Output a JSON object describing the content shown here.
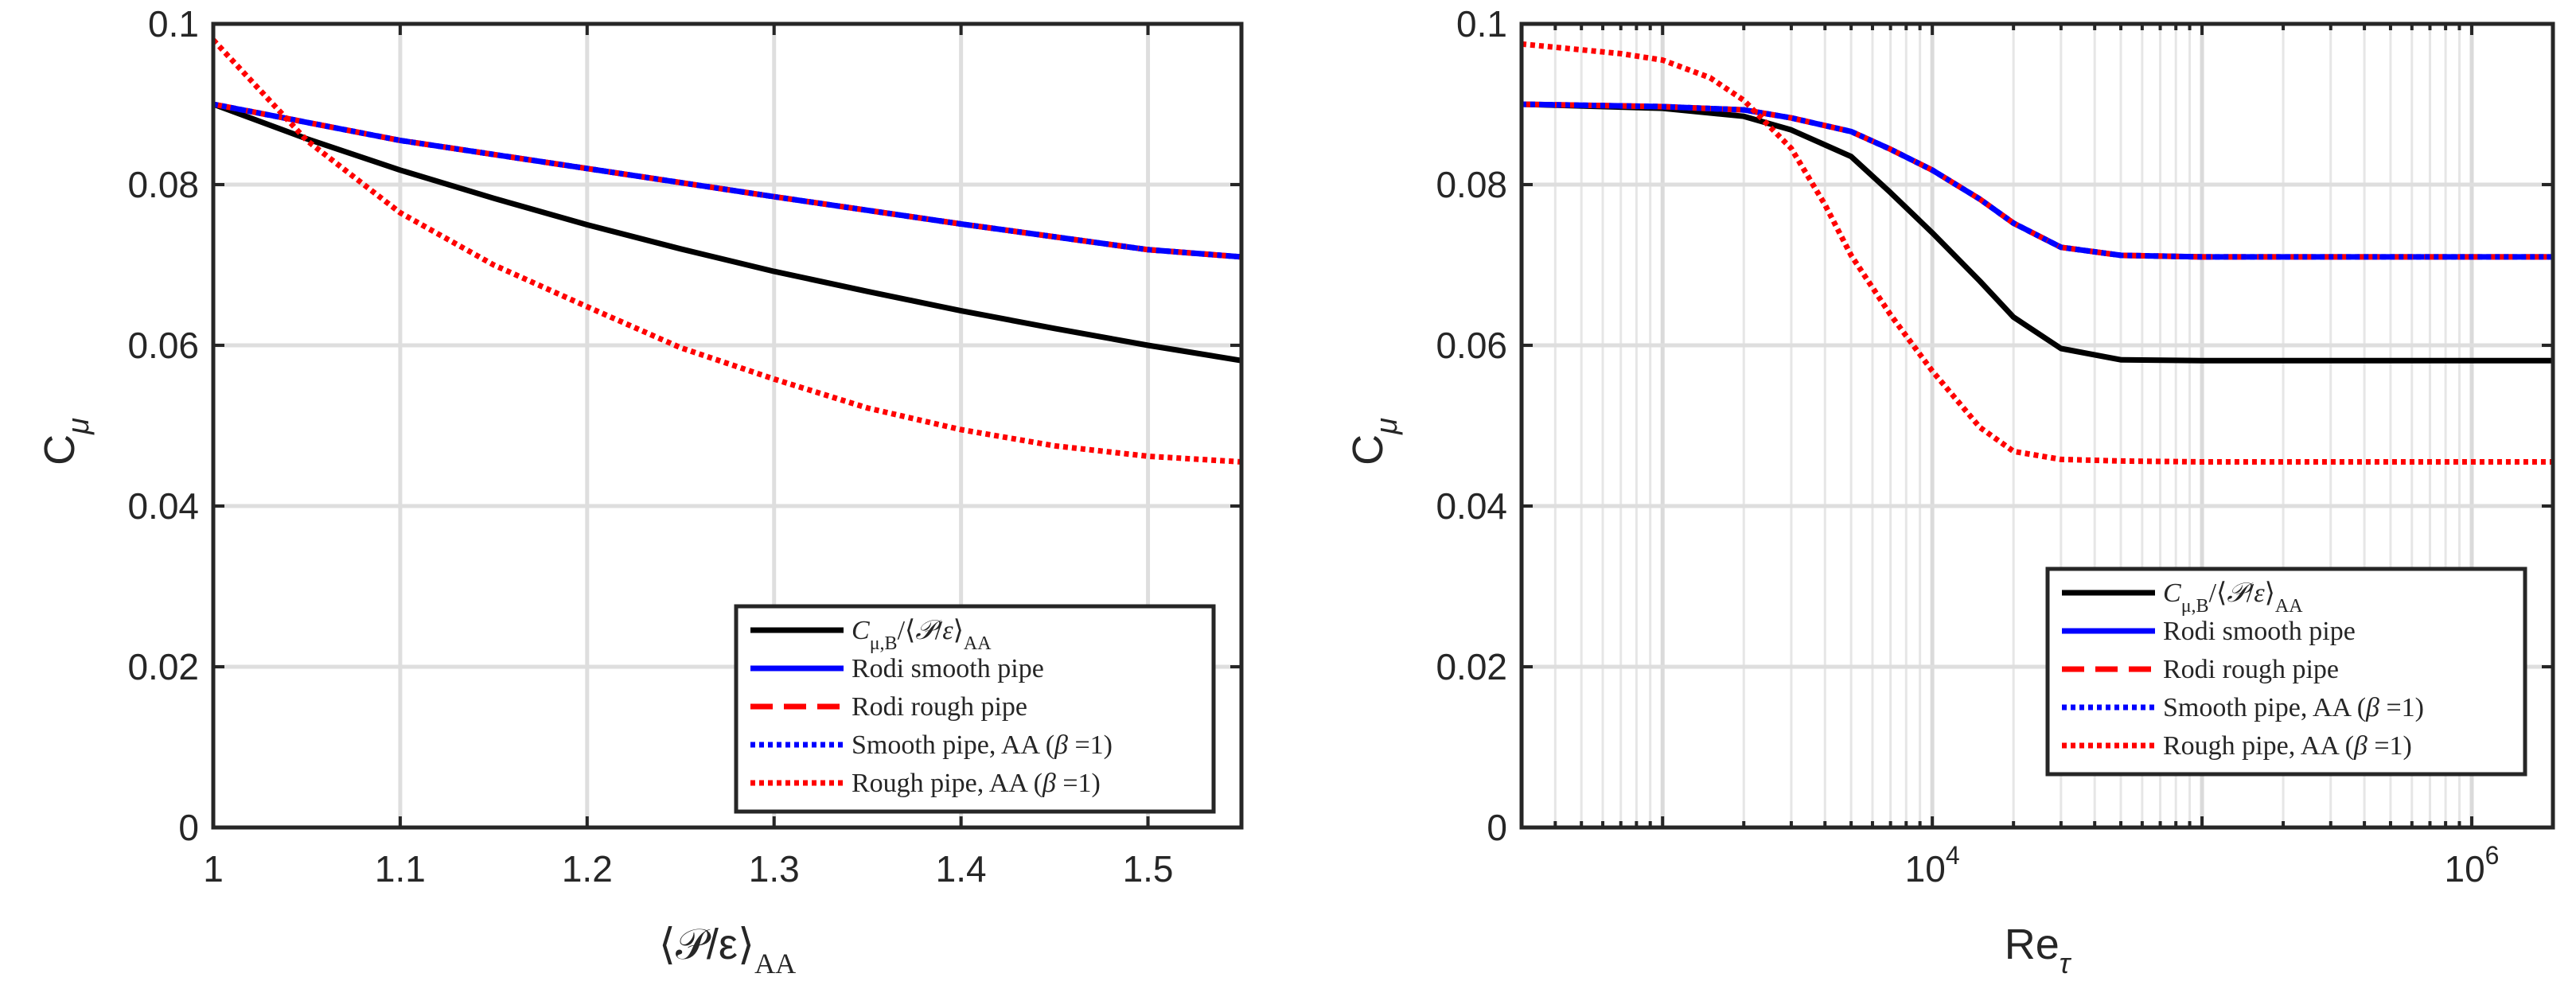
{
  "chart_data": [
    {
      "type": "line",
      "xlabel": "⟨𝒫/ε⟩",
      "xlabel_sub": "AA",
      "ylabel": "C",
      "ylabel_sub": "μ",
      "xlim": [
        1,
        1.55
      ],
      "ylim": [
        0,
        0.1
      ],
      "xticks": [
        1,
        1.1,
        1.2,
        1.3,
        1.4,
        1.5
      ],
      "xtick_labels": [
        "1",
        "1.1",
        "1.2",
        "1.3",
        "1.4",
        "1.5"
      ],
      "yticks": [
        0,
        0.02,
        0.04,
        0.06,
        0.08,
        0.1
      ],
      "ytick_labels": [
        "0",
        "0.02",
        "0.04",
        "0.06",
        "0.08",
        "0.1"
      ],
      "grid": true,
      "legend_position": "bottom-right",
      "series": [
        {
          "name": "C_{μ,B}/⟨𝒫/ε⟩_AA",
          "color": "#000000",
          "dash": "solid",
          "x": [
            1,
            1.05,
            1.1,
            1.15,
            1.2,
            1.25,
            1.3,
            1.35,
            1.4,
            1.45,
            1.5,
            1.55
          ],
          "y": [
            0.09,
            0.0857,
            0.0818,
            0.0783,
            0.075,
            0.072,
            0.0692,
            0.0667,
            0.0643,
            0.0621,
            0.06,
            0.0581
          ]
        },
        {
          "name": "Rodi        smooth pipe",
          "color": "#0000ff",
          "dash": "solid",
          "x": [
            1,
            1.1,
            1.2,
            1.3,
            1.4,
            1.5,
            1.55
          ],
          "y": [
            0.09,
            0.0855,
            0.082,
            0.0785,
            0.0751,
            0.0719,
            0.071
          ]
        },
        {
          "name": "Rodi        rough pipe",
          "color": "#ff0000",
          "dash": "dashed",
          "x": [
            1,
            1.1,
            1.2,
            1.3,
            1.4,
            1.5,
            1.55
          ],
          "y": [
            0.09,
            0.0855,
            0.082,
            0.0785,
            0.0751,
            0.0719,
            0.071
          ]
        },
        {
          "name": "Smooth pipe, AA (β =1)",
          "color": "#0000ff",
          "dash": "dotted",
          "x": [
            1,
            1.1,
            1.2,
            1.3,
            1.4,
            1.5,
            1.55
          ],
          "y": [
            0.09,
            0.0855,
            0.082,
            0.0785,
            0.0751,
            0.0719,
            0.071
          ]
        },
        {
          "name": "Rough pipe, AA (β =1)",
          "color": "#ff0000",
          "dash": "dotted",
          "x": [
            1,
            1.05,
            1.1,
            1.15,
            1.2,
            1.25,
            1.3,
            1.35,
            1.4,
            1.45,
            1.5,
            1.55
          ],
          "y": [
            0.098,
            0.0855,
            0.0765,
            0.07,
            0.0648,
            0.0597,
            0.0558,
            0.0522,
            0.0495,
            0.0475,
            0.0462,
            0.0455
          ]
        }
      ]
    },
    {
      "type": "line",
      "xscale": "log",
      "xlabel": "Re",
      "xlabel_sub": "τ",
      "ylabel": "C",
      "ylabel_sub": "μ",
      "xlim": [
        300,
        2000000
      ],
      "ylim": [
        0,
        0.1
      ],
      "xticks": [
        10000,
        1000000
      ],
      "xtick_labels": [
        "10",
        "10"
      ],
      "xtick_sup": [
        "4",
        "6"
      ],
      "yticks": [
        0,
        0.02,
        0.04,
        0.06,
        0.08,
        0.1
      ],
      "ytick_labels": [
        "0",
        "0.02",
        "0.04",
        "0.06",
        "0.08",
        "0.1"
      ],
      "grid": true,
      "legend_position": "bottom-left",
      "series": [
        {
          "name": "C_{μ,B}/⟨𝒫/ε⟩_AA",
          "color": "#000000",
          "dash": "solid",
          "x": [
            300,
            1000,
            2000,
            3000,
            5000,
            7000,
            10000,
            15000,
            20000,
            30000,
            50000,
            100000,
            1000000,
            2000000
          ],
          "y": [
            0.09,
            0.0895,
            0.0885,
            0.0868,
            0.0835,
            0.079,
            0.074,
            0.068,
            0.0635,
            0.0596,
            0.0582,
            0.0581,
            0.0581,
            0.0581
          ]
        },
        {
          "name": "Rodi        smooth pipe",
          "color": "#0000ff",
          "dash": "solid",
          "x": [
            300,
            1000,
            2000,
            3000,
            5000,
            7000,
            10000,
            15000,
            20000,
            30000,
            50000,
            100000,
            1000000,
            2000000
          ],
          "y": [
            0.09,
            0.0897,
            0.0893,
            0.0883,
            0.0866,
            0.0844,
            0.0818,
            0.0782,
            0.0752,
            0.0722,
            0.0712,
            0.071,
            0.071,
            0.071
          ]
        },
        {
          "name": "Rodi        rough pipe",
          "color": "#ff0000",
          "dash": "dashed",
          "x": [
            300,
            1000,
            2000,
            3000,
            5000,
            7000,
            10000,
            15000,
            20000,
            30000,
            50000,
            100000,
            1000000,
            2000000
          ],
          "y": [
            0.09,
            0.0897,
            0.0893,
            0.0883,
            0.0866,
            0.0844,
            0.0818,
            0.0782,
            0.0752,
            0.0722,
            0.0712,
            0.071,
            0.071,
            0.071
          ]
        },
        {
          "name": "Smooth pipe, AA (β =1)",
          "color": "#0000ff",
          "dash": "dotted",
          "x": [
            300,
            1000,
            2000,
            3000,
            5000,
            7000,
            10000,
            15000,
            20000,
            30000,
            50000,
            100000,
            1000000,
            2000000
          ],
          "y": [
            0.09,
            0.0897,
            0.0893,
            0.0883,
            0.0866,
            0.0844,
            0.0818,
            0.0782,
            0.0752,
            0.0722,
            0.0712,
            0.071,
            0.071,
            0.071
          ]
        },
        {
          "name": "Rough pipe, AA (β =1)",
          "color": "#ff0000",
          "dash": "dotted",
          "x": [
            300,
            700,
            1000,
            1500,
            2000,
            3000,
            4000,
            5000,
            7000,
            10000,
            15000,
            20000,
            30000,
            50000,
            100000,
            1000000,
            2000000
          ],
          "y": [
            0.0975,
            0.0963,
            0.0955,
            0.0933,
            0.0905,
            0.0845,
            0.0775,
            0.0712,
            0.0638,
            0.0568,
            0.0498,
            0.0468,
            0.0458,
            0.0456,
            0.0455,
            0.0455,
            0.0455
          ]
        }
      ]
    }
  ],
  "legend_entries": [
    {
      "label_html": "<tspan class='ital'>C</tspan><tspan font-size='24' baseline-shift='sub'>μ,B</tspan>/⟨<tspan class='ital'>𝒫</tspan>/<tspan class='ital'>ε</tspan>⟩<tspan font-size='24' baseline-shift='sub'>AA</tspan>"
    },
    {
      "label_html": "Rodi        smooth pipe"
    },
    {
      "label_html": "Rodi        rough pipe"
    },
    {
      "label_html": "Smooth pipe, AA (<tspan class='ital'>β</tspan> =1)"
    },
    {
      "label_html": "Rough pipe, AA (<tspan class='ital'>β</tspan> =1)"
    }
  ]
}
